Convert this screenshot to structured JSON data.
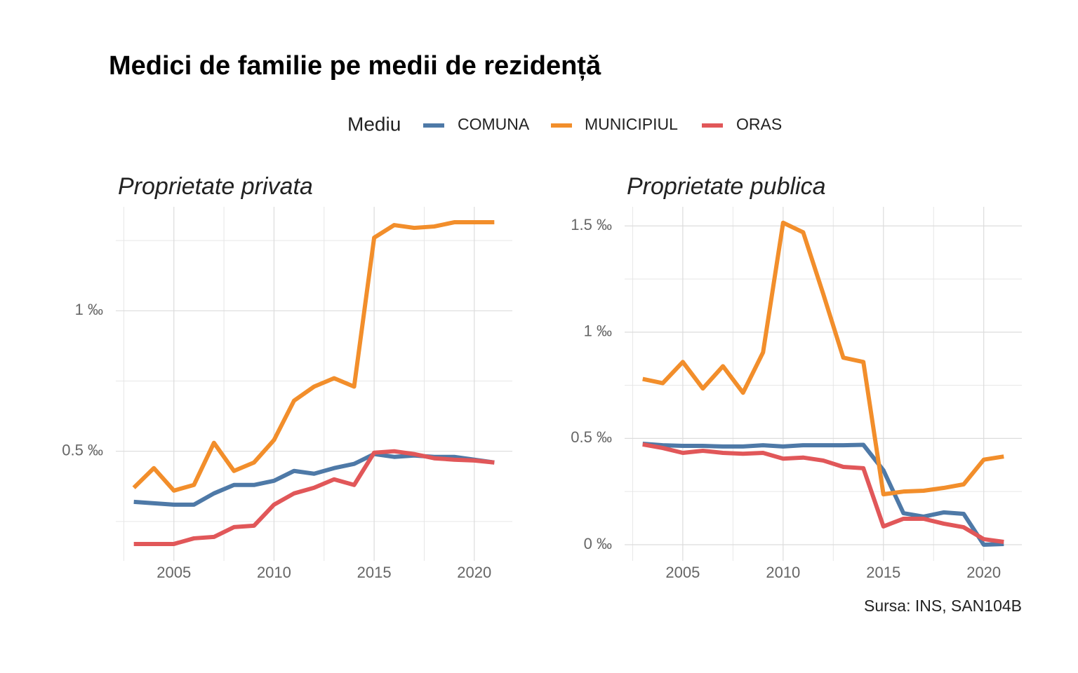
{
  "title": "Medici de familie pe medii de rezidență",
  "legend_title": "Mediu",
  "caption": "Sursa: INS, SAN104B",
  "chart_data": [
    {
      "type": "line",
      "title": "Proprietate privata",
      "x": [
        2003,
        2004,
        2005,
        2006,
        2007,
        2008,
        2009,
        2010,
        2011,
        2012,
        2013,
        2014,
        2015,
        2016,
        2017,
        2018,
        2019,
        2020,
        2021
      ],
      "series": [
        {
          "name": "COMUNA",
          "color": "#4e79a7",
          "values": [
            0.32,
            0.315,
            0.31,
            0.31,
            0.35,
            0.38,
            0.38,
            0.395,
            0.43,
            0.42,
            0.44,
            0.455,
            0.49,
            0.48,
            0.485,
            0.48,
            0.48,
            0.47,
            0.46
          ]
        },
        {
          "name": "MUNICIPIUL",
          "color": "#f28e2b",
          "values": [
            0.37,
            0.44,
            0.36,
            0.38,
            0.53,
            0.43,
            0.46,
            0.54,
            0.68,
            0.73,
            0.76,
            0.73,
            1.26,
            1.305,
            1.295,
            1.3,
            1.315,
            1.315,
            1.315
          ]
        },
        {
          "name": "ORAS",
          "color": "#e15759",
          "values": [
            0.17,
            0.17,
            0.17,
            0.19,
            0.195,
            0.23,
            0.235,
            0.31,
            0.35,
            0.37,
            0.4,
            0.38,
            0.495,
            0.5,
            0.49,
            0.475,
            0.47,
            0.467,
            0.46
          ]
        }
      ],
      "xlim": [
        2002.1,
        2021.9
      ],
      "xticks": [
        2005,
        2010,
        2015,
        2020
      ],
      "minor_xticks": [
        2002.5,
        2007.5,
        2012.5,
        2017.5
      ],
      "ylim": [
        0.11,
        1.37
      ],
      "yticks": [
        {
          "value": 0.5,
          "label": "0.5 ‰"
        },
        {
          "value": 1,
          "label": "1 ‰"
        }
      ],
      "minor_yticks": [
        0.25,
        0.75,
        1.25
      ],
      "grid": true
    },
    {
      "type": "line",
      "title": "Proprietate publica",
      "x": [
        2003,
        2004,
        2005,
        2006,
        2007,
        2008,
        2009,
        2010,
        2011,
        2012,
        2013,
        2014,
        2015,
        2016,
        2017,
        2018,
        2019,
        2020,
        2021
      ],
      "series": [
        {
          "name": "COMUNA",
          "color": "#4e79a7",
          "values": [
            0.475,
            0.468,
            0.465,
            0.465,
            0.462,
            0.462,
            0.468,
            0.462,
            0.468,
            0.468,
            0.468,
            0.47,
            0.35,
            0.148,
            0.132,
            0.152,
            0.145,
            0.0,
            0.003
          ]
        },
        {
          "name": "MUNICIPIUL",
          "color": "#f28e2b",
          "values": [
            0.78,
            0.76,
            0.86,
            0.735,
            0.84,
            0.715,
            0.905,
            1.515,
            1.47,
            1.18,
            0.88,
            0.86,
            0.237,
            0.25,
            0.254,
            0.267,
            0.284,
            0.4,
            0.415
          ]
        },
        {
          "name": "ORAS",
          "color": "#e15759",
          "values": [
            0.472,
            0.455,
            0.432,
            0.442,
            0.432,
            0.428,
            0.432,
            0.405,
            0.41,
            0.396,
            0.366,
            0.36,
            0.086,
            0.122,
            0.122,
            0.099,
            0.082,
            0.026,
            0.013
          ]
        }
      ],
      "xlim": [
        2002.1,
        2021.9
      ],
      "xticks": [
        2005,
        2010,
        2015,
        2020
      ],
      "minor_xticks": [
        2002.5,
        2007.5,
        2012.5,
        2017.5
      ],
      "ylim": [
        -0.076,
        1.59
      ],
      "yticks": [
        {
          "value": 0,
          "label": "0 ‰"
        },
        {
          "value": 0.5,
          "label": "0.5 ‰"
        },
        {
          "value": 1,
          "label": "1 ‰"
        },
        {
          "value": 1.5,
          "label": "1.5 ‰"
        }
      ],
      "minor_yticks": [
        0.25,
        0.75,
        1.25
      ],
      "grid": true
    }
  ]
}
